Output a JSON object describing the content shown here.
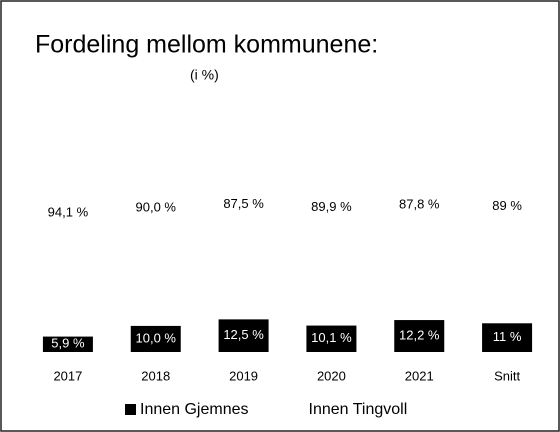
{
  "chart_data": {
    "type": "stacked_bar",
    "title": "Fordeling mellom kommunene:",
    "subtitle": "(i %)",
    "categories": [
      "2017",
      "2018",
      "2019",
      "2020",
      "2021",
      "Snitt"
    ],
    "series": [
      {
        "name": "Innen Gjemnes",
        "color": "#000000",
        "values": [
          5.9,
          10.0,
          12.5,
          10.1,
          12.2,
          11
        ],
        "value_labels": [
          "5,9 %",
          "10,0 %",
          "12,5 %",
          "10,1 %",
          "12,2 %",
          "11 %"
        ]
      },
      {
        "name": "Innen Tingvoll",
        "color": "#ffffff",
        "values": [
          94.1,
          90.0,
          87.5,
          89.9,
          87.8,
          89
        ],
        "value_labels": [
          "94,1 %",
          "90,0 %",
          "87,5 %",
          "89,9 %",
          "87,8 %",
          "89 %"
        ]
      }
    ],
    "ylim": [
      0,
      100
    ],
    "legend": "bottom"
  }
}
